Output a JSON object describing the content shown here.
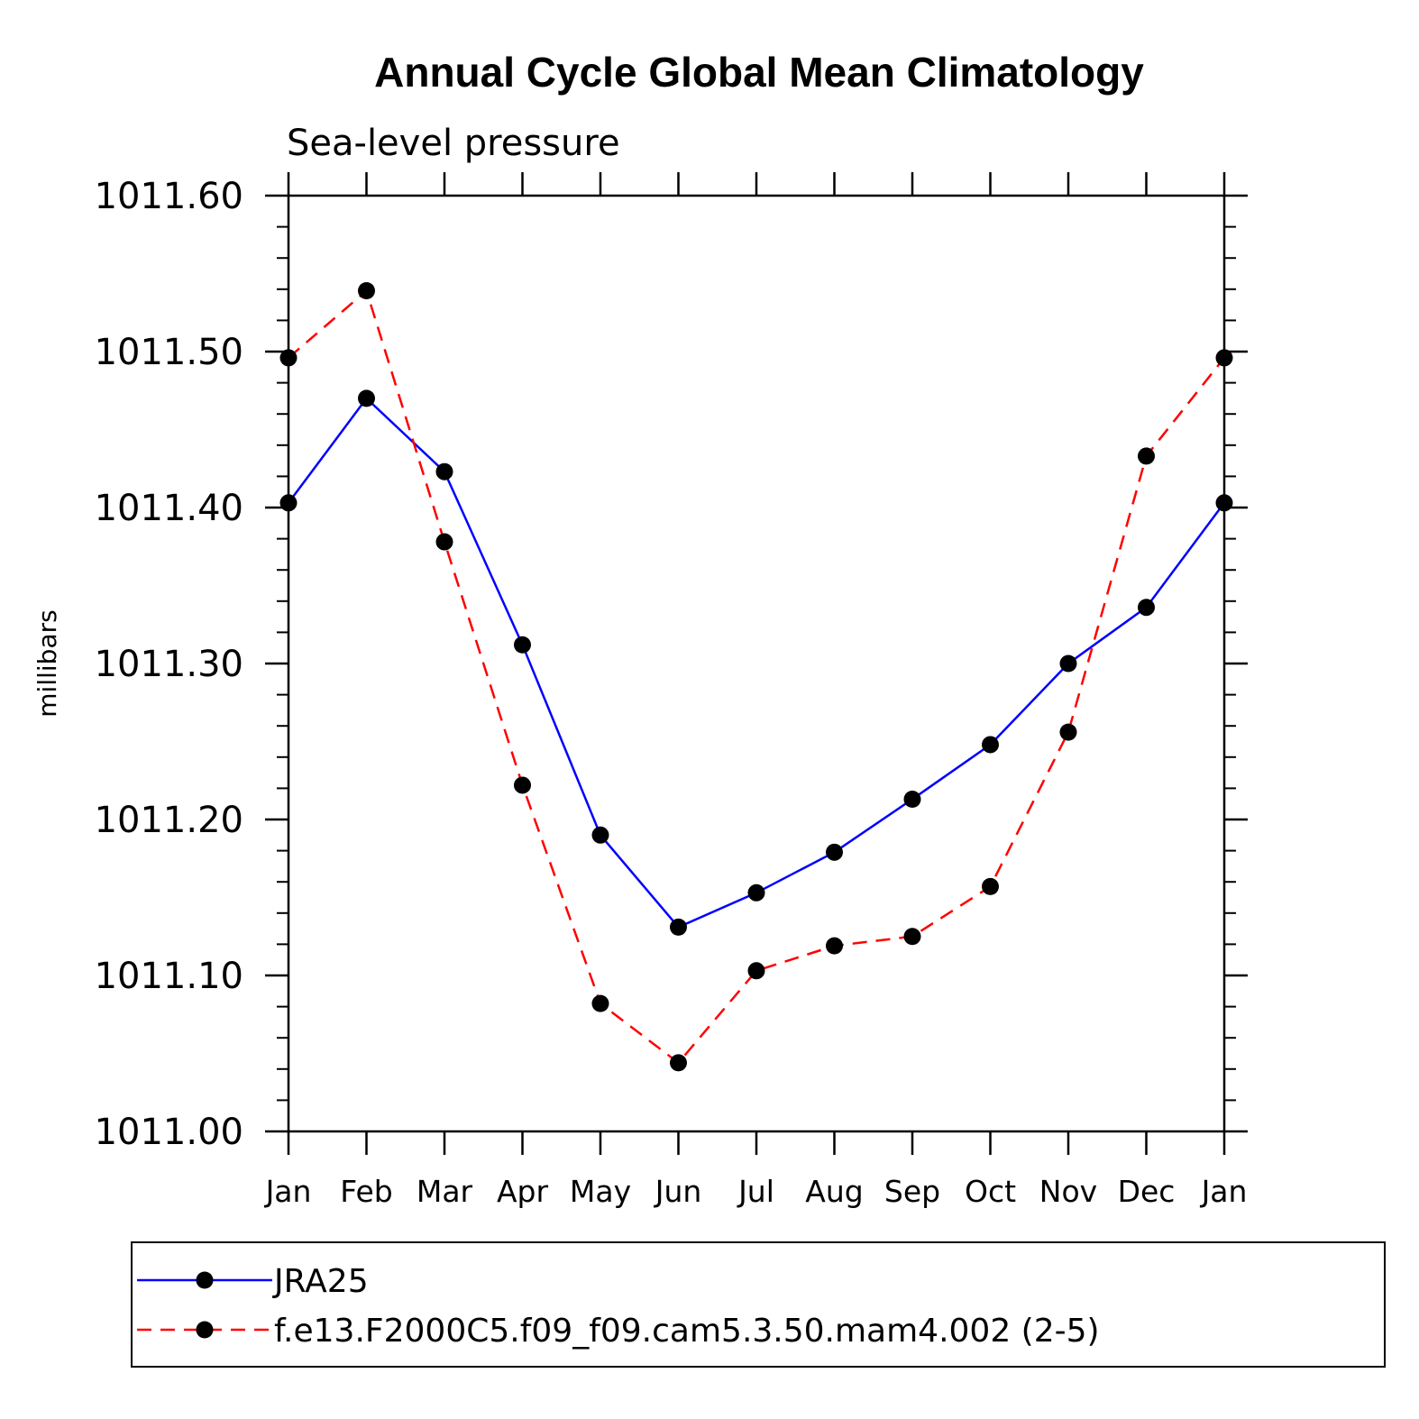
{
  "chart_data": {
    "type": "line",
    "title": "Annual Cycle Global Mean Climatology",
    "subtitle": "Sea-level pressure",
    "xlabel": "",
    "ylabel": "millibars",
    "categories": [
      "Jan",
      "Feb",
      "Mar",
      "Apr",
      "May",
      "Jun",
      "Jul",
      "Aug",
      "Sep",
      "Oct",
      "Nov",
      "Dec",
      "Jan"
    ],
    "ylim": [
      1011.0,
      1011.6
    ],
    "yticks": [
      "1011.00",
      "1011.10",
      "1011.20",
      "1011.30",
      "1011.40",
      "1011.50",
      "1011.60"
    ],
    "grid": false,
    "legend_position": "bottom",
    "series": [
      {
        "name": "JRA25",
        "color": "#0000ff",
        "dash": "solid",
        "values": [
          1011.403,
          1011.47,
          1011.423,
          1011.312,
          1011.19,
          1011.131,
          1011.153,
          1011.179,
          1011.213,
          1011.248,
          1011.3,
          1011.336,
          1011.403
        ]
      },
      {
        "name": "f.e13.F2000C5.f09_f09.cam5.3.50.mam4.002 (2-5)",
        "color": "#ff0000",
        "dash": "dashed",
        "values": [
          1011.496,
          1011.539,
          1011.378,
          1011.222,
          1011.082,
          1011.044,
          1011.103,
          1011.119,
          1011.125,
          1011.157,
          1011.256,
          1011.433,
          1011.496
        ]
      }
    ]
  }
}
